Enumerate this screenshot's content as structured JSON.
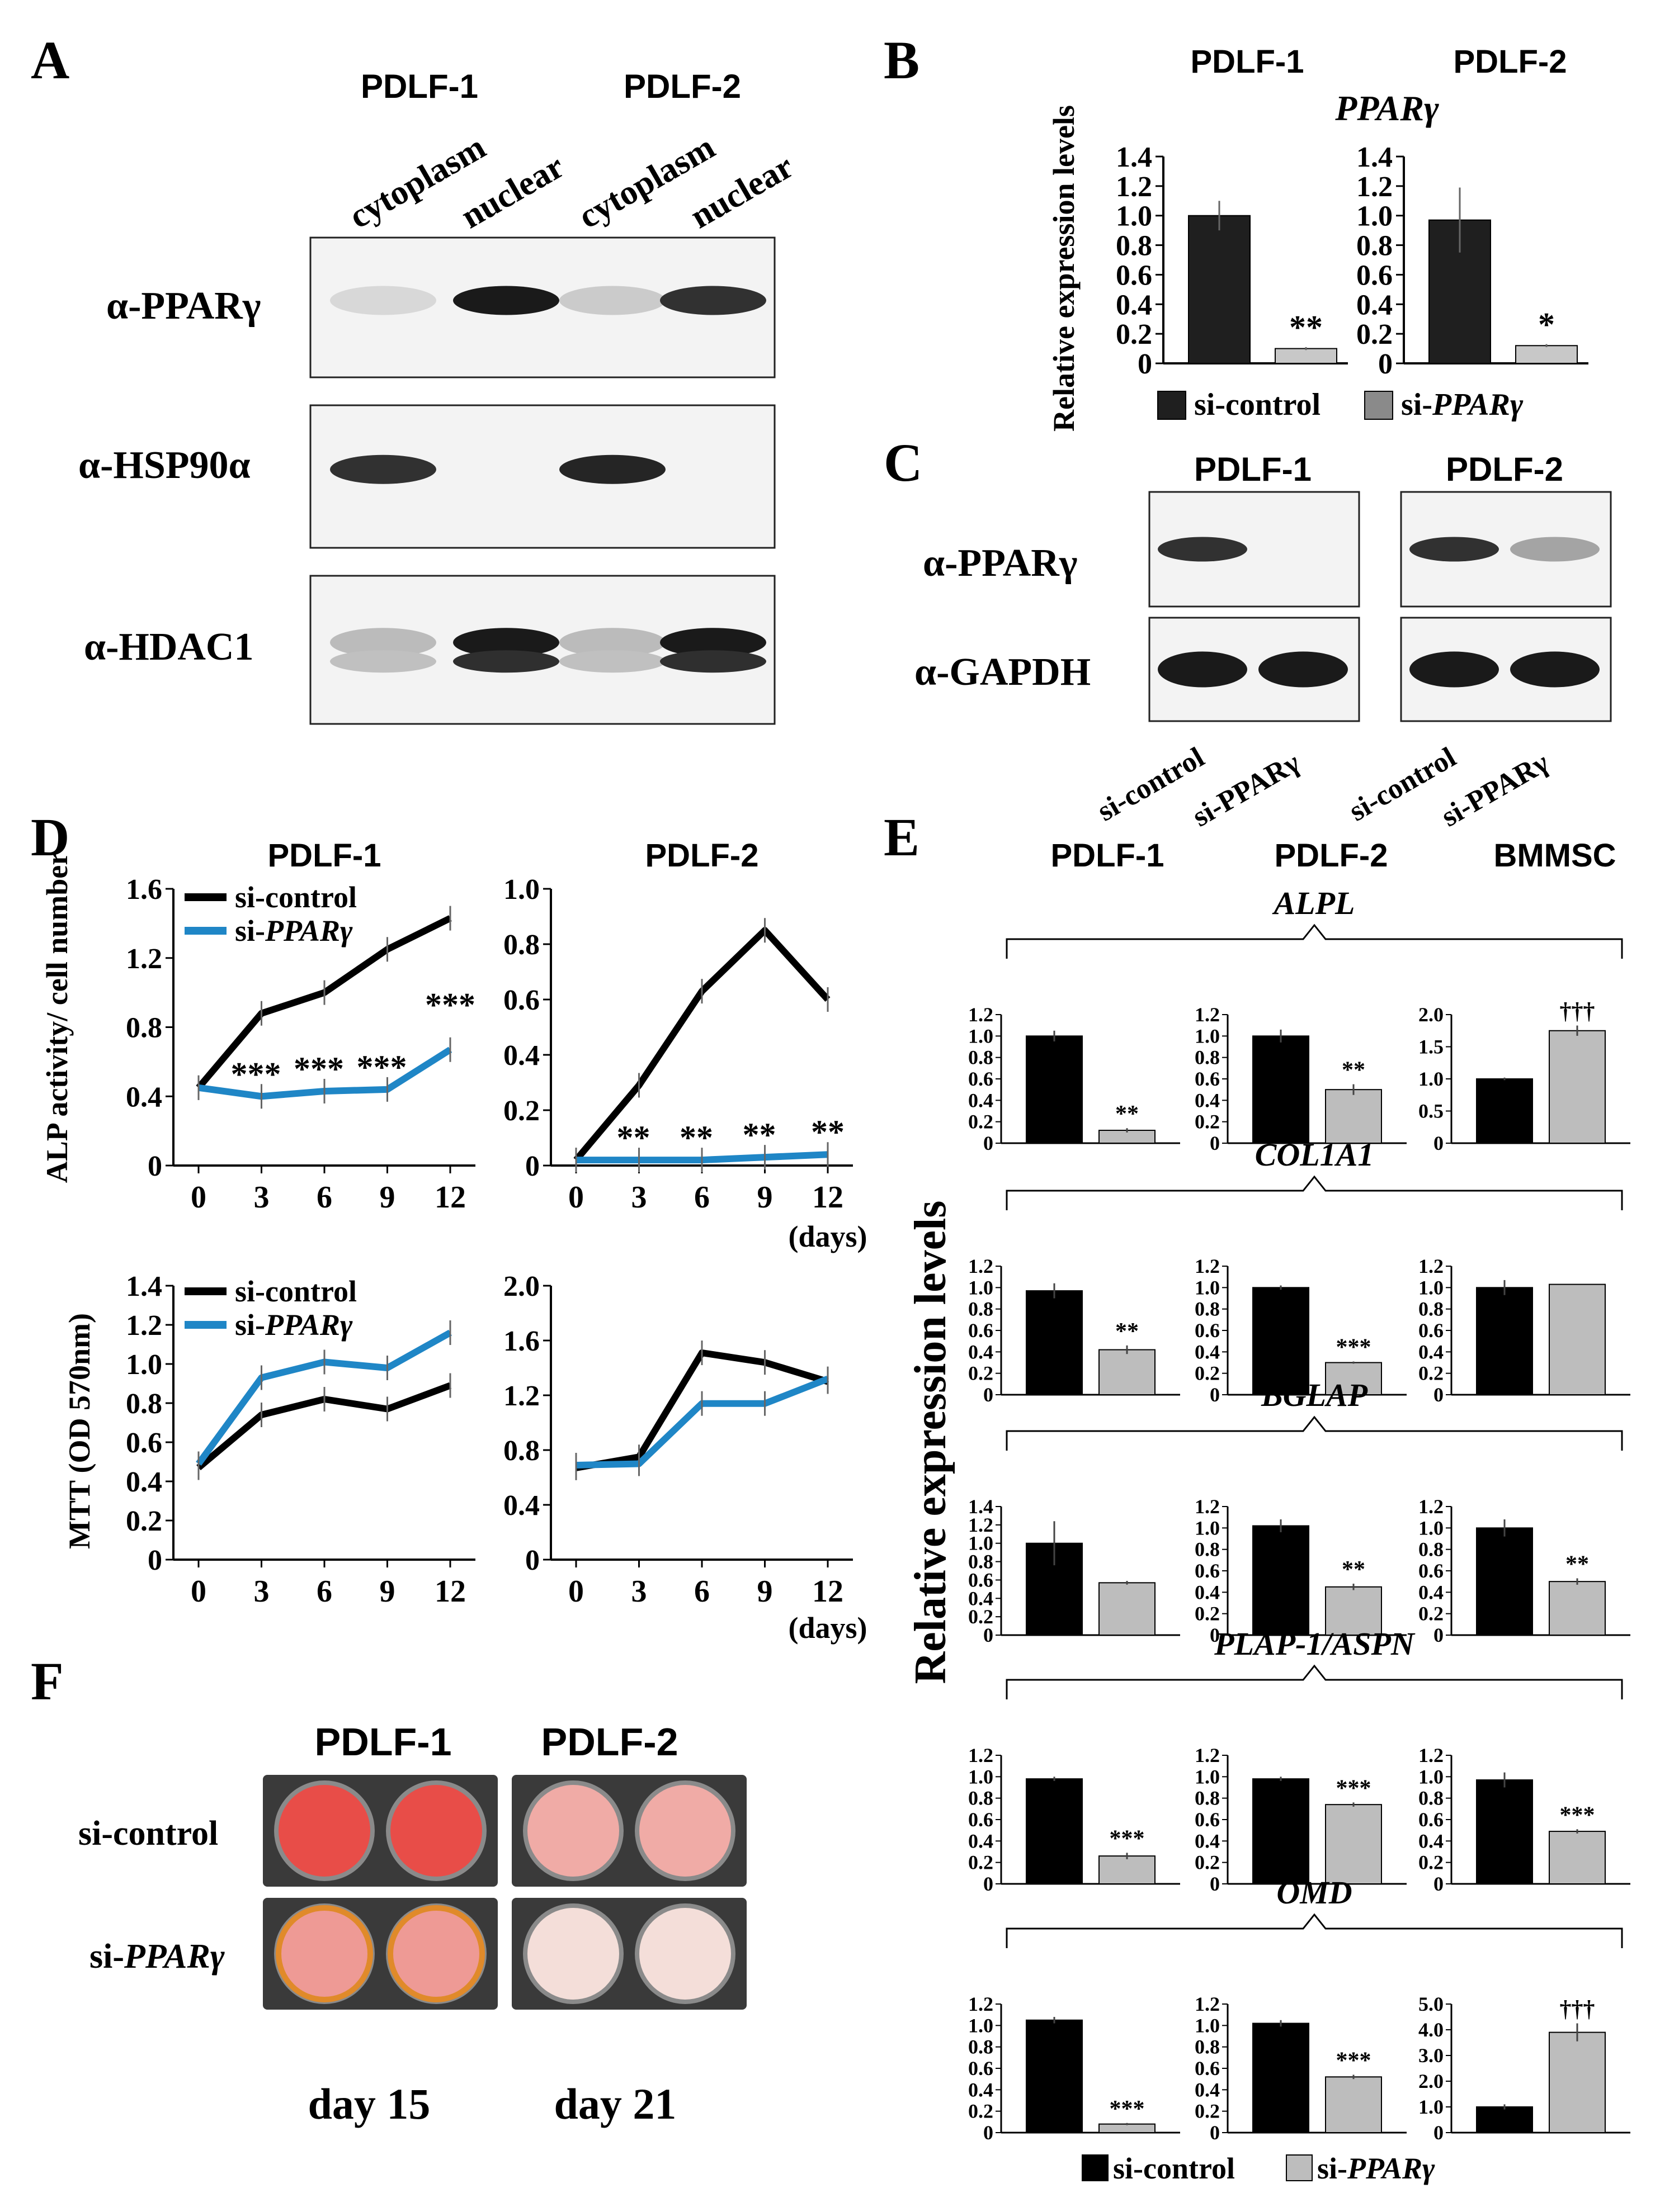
{
  "panelA": {
    "letter": "A",
    "groups": [
      "PDLF-1",
      "PDLF-2"
    ],
    "lanes": [
      "cytoplasm",
      "nuclear",
      "cytoplasm",
      "nuclear"
    ],
    "rows": [
      {
        "label": "α-PPARγ",
        "intensity": [
          0.12,
          0.95,
          0.18,
          0.85
        ]
      },
      {
        "label": "α-HSP90α",
        "intensity": [
          0.85,
          0.02,
          0.9,
          0.02
        ]
      },
      {
        "label": "α-HDAC1",
        "intensity": [
          0.25,
          0.95,
          0.25,
          0.95
        ]
      }
    ]
  },
  "panelB": {
    "letter": "B",
    "gene": "PPARγ",
    "ylabel": "Relative expression levels",
    "legend": [
      "si-control",
      "si-PPARγ"
    ],
    "colors": {
      "control": "#1f1f1f",
      "sirna": "#c8c8c8"
    },
    "charts": [
      {
        "title": "PDLF-1",
        "ticks": [
          "0",
          "0.2",
          "0.4",
          "0.6",
          "0.8",
          "1.0",
          "1.2",
          "1.4"
        ],
        "ylim": [
          0,
          1.4
        ],
        "values": [
          1.0,
          0.1
        ],
        "err": [
          0.1,
          0.01
        ],
        "sig": "**"
      },
      {
        "title": "PDLF-2",
        "ticks": [
          "0",
          "0.2",
          "0.4",
          "0.6",
          "0.8",
          "1.0",
          "1.2",
          "1.4"
        ],
        "ylim": [
          0,
          1.4
        ],
        "values": [
          0.97,
          0.12
        ],
        "err": [
          0.22,
          0.01
        ],
        "sig": "*"
      }
    ]
  },
  "panelC": {
    "letter": "C",
    "groups": [
      "PDLF-1",
      "PDLF-2"
    ],
    "rows": [
      {
        "label": "α-PPARγ",
        "intensity": [
          [
            0.85,
            0.0
          ],
          [
            0.85,
            0.35
          ]
        ]
      },
      {
        "label": "α-GAPDH",
        "intensity": [
          [
            0.95,
            0.95
          ],
          [
            0.95,
            0.95
          ]
        ]
      }
    ],
    "lane_labels": [
      "si-control",
      "si-PPARγ",
      "si-control",
      "si-PPARγ"
    ]
  },
  "panelD": {
    "letter": "D",
    "legend": [
      "si-control",
      "si-PPARγ"
    ],
    "colors": {
      "control": "#000000",
      "sirna": "#1f86c6"
    },
    "alp_ylabel": "ALP activity/ cell number",
    "mtt_ylabel": "MTT (OD 570nm)",
    "days_label": "(days)",
    "charts": [
      {
        "title": "PDLF-1",
        "x": [
          0,
          3,
          6,
          9,
          12
        ],
        "xticks": [
          "0",
          "3",
          "6",
          "9",
          "12"
        ],
        "ylim": [
          0,
          1.6
        ],
        "yticks": [
          "0",
          "0.4",
          "0.8",
          "1.2",
          "1.6"
        ],
        "series": [
          {
            "values": [
              0.45,
              0.88,
              1.0,
              1.25,
              1.43
            ]
          },
          {
            "values": [
              0.45,
              0.4,
              0.43,
              0.44,
              0.67
            ]
          }
        ],
        "sig": [
          "",
          "***",
          "***",
          "***",
          "***"
        ]
      },
      {
        "title": "PDLF-2",
        "x": [
          0,
          3,
          6,
          9,
          12
        ],
        "xticks": [
          "0",
          "3",
          "6",
          "9",
          "12"
        ],
        "ylim": [
          0,
          1.0
        ],
        "yticks": [
          "0",
          "0.2",
          "0.4",
          "0.6",
          "0.8",
          "1.0"
        ],
        "series": [
          {
            "values": [
              0.02,
              0.29,
              0.63,
              0.85,
              0.6
            ]
          },
          {
            "values": [
              0.02,
              0.02,
              0.02,
              0.03,
              0.04
            ]
          }
        ],
        "sig": [
          "",
          "**",
          "**",
          "**",
          "**"
        ]
      },
      {
        "title": "",
        "x": [
          0,
          3,
          6,
          9,
          12
        ],
        "xticks": [
          "0",
          "3",
          "6",
          "9",
          "12"
        ],
        "ylim": [
          0,
          1.4
        ],
        "yticks": [
          "0",
          "0.2",
          "0.4",
          "0.6",
          "0.8",
          "1.0",
          "1.2",
          "1.4"
        ],
        "series": [
          {
            "values": [
              0.47,
              0.74,
              0.82,
              0.77,
              0.89
            ]
          },
          {
            "values": [
              0.49,
              0.93,
              1.01,
              0.98,
              1.16
            ]
          }
        ],
        "sig": []
      },
      {
        "title": "",
        "x": [
          0,
          3,
          6,
          9,
          12
        ],
        "xticks": [
          "0",
          "3",
          "6",
          "9",
          "12"
        ],
        "ylim": [
          0,
          2.0
        ],
        "yticks": [
          "0",
          "0.4",
          "0.8",
          "1.2",
          "1.6",
          "2.0"
        ],
        "series": [
          {
            "values": [
              0.67,
              0.75,
              1.51,
              1.44,
              1.3
            ]
          },
          {
            "values": [
              0.69,
              0.7,
              1.14,
              1.14,
              1.32
            ]
          }
        ],
        "sig": []
      }
    ]
  },
  "panelE": {
    "letter": "E",
    "ylabel": "Relative expression levels",
    "columns": [
      "PDLF-1",
      "PDLF-2",
      "BMMSC"
    ],
    "legend": [
      "si-control",
      "si-PPARγ"
    ],
    "colors": {
      "control": "#000000",
      "sirna": "#bdbdbd"
    },
    "genes": [
      {
        "name": "ALPL",
        "charts": [
          {
            "ticks": [
              "0",
              "0.2",
              "0.4",
              "0.6",
              "0.8",
              "1.0",
              "1.2"
            ],
            "ylim": [
              0,
              1.2
            ],
            "values": [
              1.0,
              0.12
            ],
            "err": [
              0.05,
              0.02
            ],
            "sig": "**"
          },
          {
            "ticks": [
              "0",
              "0.2",
              "0.4",
              "0.6",
              "0.8",
              "1.0",
              "1.2"
            ],
            "ylim": [
              0,
              1.2
            ],
            "values": [
              1.0,
              0.5
            ],
            "err": [
              0.06,
              0.05
            ],
            "sig": "**"
          },
          {
            "ticks": [
              "0",
              "0.5",
              "1.0",
              "1.5",
              "2.0"
            ],
            "ylim": [
              0,
              2.0
            ],
            "values": [
              1.0,
              1.75
            ],
            "err": [
              0.02,
              0.08
            ],
            "sig": "†††"
          }
        ]
      },
      {
        "name": "COL1A1",
        "charts": [
          {
            "ticks": [
              "0",
              "0.2",
              "0.4",
              "0.6",
              "0.8",
              "1.0",
              "1.2"
            ],
            "ylim": [
              0,
              1.2
            ],
            "values": [
              0.97,
              0.42
            ],
            "err": [
              0.07,
              0.04
            ],
            "sig": "**"
          },
          {
            "ticks": [
              "0",
              "0.2",
              "0.4",
              "0.6",
              "0.8",
              "1.0",
              "1.2"
            ],
            "ylim": [
              0,
              1.2
            ],
            "values": [
              1.0,
              0.3
            ],
            "err": [
              0.02,
              0.01
            ],
            "sig": "***"
          },
          {
            "ticks": [
              "0",
              "0.2",
              "0.4",
              "0.6",
              "0.8",
              "1.0",
              "1.2"
            ],
            "ylim": [
              0,
              1.2
            ],
            "values": [
              1.0,
              1.03
            ],
            "err": [
              0.07,
              0.0
            ],
            "sig": ""
          }
        ]
      },
      {
        "name": "BGLAP",
        "charts": [
          {
            "ticks": [
              "0",
              "0.2",
              "0.4",
              "0.6",
              "0.8",
              "1.0",
              "1.2",
              "1.4"
            ],
            "ylim": [
              0,
              1.4
            ],
            "values": [
              1.0,
              0.57
            ],
            "err": [
              0.24,
              0.02
            ],
            "sig": ""
          },
          {
            "ticks": [
              "0",
              "0.2",
              "0.4",
              "0.6",
              "0.8",
              "1.0",
              "1.2"
            ],
            "ylim": [
              0,
              1.2
            ],
            "values": [
              1.02,
              0.45
            ],
            "err": [
              0.06,
              0.03
            ],
            "sig": "**"
          },
          {
            "ticks": [
              "0",
              "0.2",
              "0.4",
              "0.6",
              "0.8",
              "1.0",
              "1.2"
            ],
            "ylim": [
              0,
              1.2
            ],
            "values": [
              1.0,
              0.5
            ],
            "err": [
              0.08,
              0.03
            ],
            "sig": "**"
          }
        ]
      },
      {
        "name": "PLAP-1/ASPN",
        "charts": [
          {
            "ticks": [
              "0",
              "0.2",
              "0.4",
              "0.6",
              "0.8",
              "1.0",
              "1.2"
            ],
            "ylim": [
              0,
              1.2
            ],
            "values": [
              0.98,
              0.26
            ],
            "err": [
              0.02,
              0.03
            ],
            "sig": "***"
          },
          {
            "ticks": [
              "0",
              "0.2",
              "0.4",
              "0.6",
              "0.8",
              "1.0",
              "1.2"
            ],
            "ylim": [
              0,
              1.2
            ],
            "values": [
              0.98,
              0.74
            ],
            "err": [
              0.02,
              0.02
            ],
            "sig": "***"
          },
          {
            "ticks": [
              "0",
              "0.2",
              "0.4",
              "0.6",
              "0.8",
              "1.0",
              "1.2"
            ],
            "ylim": [
              0,
              1.2
            ],
            "values": [
              0.97,
              0.49
            ],
            "err": [
              0.07,
              0.02
            ],
            "sig": "***"
          }
        ]
      },
      {
        "name": "OMD",
        "charts": [
          {
            "ticks": [
              "0",
              "0.2",
              "0.4",
              "0.6",
              "0.8",
              "1.0",
              "1.2"
            ],
            "ylim": [
              0,
              1.2
            ],
            "values": [
              1.05,
              0.08
            ],
            "err": [
              0.03,
              0.01
            ],
            "sig": "***"
          },
          {
            "ticks": [
              "0",
              "0.2",
              "0.4",
              "0.6",
              "0.8",
              "1.0",
              "1.2"
            ],
            "ylim": [
              0,
              1.2
            ],
            "values": [
              1.02,
              0.52
            ],
            "err": [
              0.03,
              0.02
            ],
            "sig": "***"
          },
          {
            "ticks": [
              "0",
              "1.0",
              "2.0",
              "3.0",
              "4.0",
              "5.0"
            ],
            "ylim": [
              0,
              5.0
            ],
            "values": [
              1.0,
              3.9
            ],
            "err": [
              0.1,
              0.35
            ],
            "sig": "†††"
          }
        ]
      }
    ]
  },
  "panelF": {
    "letter": "F",
    "groups": [
      "PDLF-1",
      "PDLF-2"
    ],
    "rows": [
      "si-control",
      "si-PPARγ"
    ],
    "days": [
      "day 15",
      "day 21"
    ],
    "stain": [
      [
        0.9,
        0.35
      ],
      [
        0.45,
        0.05
      ]
    ]
  },
  "chart_data": [
    {
      "type": "bar",
      "title": "PDLF-1",
      "subtitle": "PPARγ",
      "ylabel": "Relative expression levels",
      "categories": [
        "si-control",
        "si-PPARγ"
      ],
      "values": [
        1.0,
        0.1
      ],
      "ylim": [
        0,
        1.4
      ]
    },
    {
      "type": "bar",
      "title": "PDLF-2",
      "subtitle": "PPARγ",
      "ylabel": "Relative expression levels",
      "categories": [
        "si-control",
        "si-PPARγ"
      ],
      "values": [
        0.97,
        0.12
      ],
      "ylim": [
        0,
        1.4
      ]
    },
    {
      "type": "line",
      "title": "PDLF-1",
      "ylabel": "ALP activity/ cell number",
      "x": [
        0,
        3,
        6,
        9,
        12
      ],
      "series": [
        {
          "name": "si-control",
          "values": [
            0.45,
            0.88,
            1.0,
            1.25,
            1.43
          ]
        },
        {
          "name": "si-PPARγ",
          "values": [
            0.45,
            0.4,
            0.43,
            0.44,
            0.67
          ]
        }
      ],
      "ylim": [
        0,
        1.6
      ]
    },
    {
      "type": "line",
      "title": "PDLF-2",
      "xlabel": "(days)",
      "x": [
        0,
        3,
        6,
        9,
        12
      ],
      "series": [
        {
          "name": "si-control",
          "values": [
            0.02,
            0.29,
            0.63,
            0.85,
            0.6
          ]
        },
        {
          "name": "si-PPARγ",
          "values": [
            0.02,
            0.02,
            0.02,
            0.03,
            0.04
          ]
        }
      ],
      "ylim": [
        0,
        1.0
      ]
    },
    {
      "type": "line",
      "ylabel": "MTT (OD 570nm)",
      "x": [
        0,
        3,
        6,
        9,
        12
      ],
      "series": [
        {
          "name": "si-control",
          "values": [
            0.47,
            0.74,
            0.82,
            0.77,
            0.89
          ]
        },
        {
          "name": "si-PPARγ",
          "values": [
            0.49,
            0.93,
            1.01,
            0.98,
            1.16
          ]
        }
      ],
      "ylim": [
        0,
        1.4
      ]
    },
    {
      "type": "line",
      "xlabel": "(days)",
      "x": [
        0,
        3,
        6,
        9,
        12
      ],
      "series": [
        {
          "name": "si-control",
          "values": [
            0.67,
            0.75,
            1.51,
            1.44,
            1.3
          ]
        },
        {
          "name": "si-PPARγ",
          "values": [
            0.69,
            0.7,
            1.14,
            1.14,
            1.32
          ]
        }
      ],
      "ylim": [
        0,
        2.0
      ]
    },
    {
      "type": "bar",
      "title": "ALPL",
      "ylabel": "Relative expression levels",
      "categories": [
        "PDLF-1",
        "PDLF-2",
        "BMMSC"
      ],
      "series": [
        {
          "name": "si-control",
          "values": [
            1.0,
            1.0,
            1.0
          ]
        },
        {
          "name": "si-PPARγ",
          "values": [
            0.12,
            0.5,
            1.75
          ]
        }
      ]
    },
    {
      "type": "bar",
      "title": "COL1A1",
      "categories": [
        "PDLF-1",
        "PDLF-2",
        "BMMSC"
      ],
      "series": [
        {
          "name": "si-control",
          "values": [
            0.97,
            1.0,
            1.0
          ]
        },
        {
          "name": "si-PPARγ",
          "values": [
            0.42,
            0.3,
            1.03
          ]
        }
      ]
    },
    {
      "type": "bar",
      "title": "BGLAP",
      "categories": [
        "PDLF-1",
        "PDLF-2",
        "BMMSC"
      ],
      "series": [
        {
          "name": "si-control",
          "values": [
            1.0,
            1.02,
            1.0
          ]
        },
        {
          "name": "si-PPARγ",
          "values": [
            0.57,
            0.45,
            0.5
          ]
        }
      ]
    },
    {
      "type": "bar",
      "title": "PLAP-1/ASPN",
      "categories": [
        "PDLF-1",
        "PDLF-2",
        "BMMSC"
      ],
      "series": [
        {
          "name": "si-control",
          "values": [
            0.98,
            0.98,
            0.97
          ]
        },
        {
          "name": "si-PPARγ",
          "values": [
            0.26,
            0.74,
            0.49
          ]
        }
      ]
    },
    {
      "type": "bar",
      "title": "OMD",
      "categories": [
        "PDLF-1",
        "PDLF-2",
        "BMMSC"
      ],
      "series": [
        {
          "name": "si-control",
          "values": [
            1.05,
            1.02,
            1.0
          ]
        },
        {
          "name": "si-PPARγ",
          "values": [
            0.08,
            0.52,
            3.9
          ]
        }
      ]
    }
  ]
}
